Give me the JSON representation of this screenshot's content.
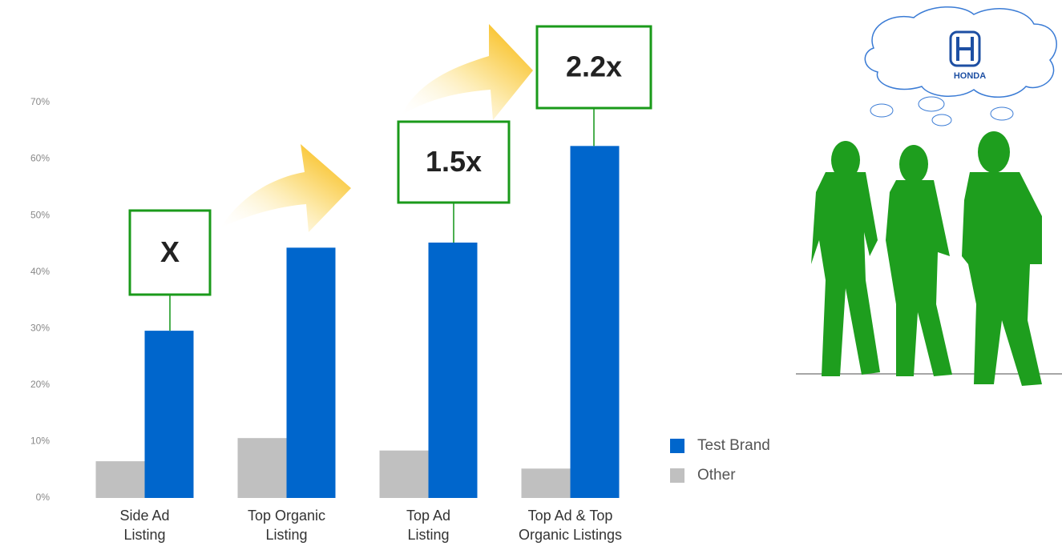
{
  "chart_data": {
    "type": "bar",
    "categories": [
      "Side Ad Listing",
      "Top Organic Listing",
      "Top Ad Listing",
      "Top Ad & Top Organic Listings"
    ],
    "series": [
      {
        "name": "Other",
        "color": "#c0c0c0",
        "values": [
          6.5,
          10.6,
          8.4,
          5.2
        ]
      },
      {
        "name": "Test Brand",
        "color": "#0066cc",
        "values": [
          29.6,
          44.3,
          45.2,
          62.3
        ]
      }
    ],
    "ylim": [
      0,
      70
    ],
    "yticks": [
      {
        "value": 0,
        "label": "0%"
      },
      {
        "value": 10,
        "label": "10%"
      },
      {
        "value": 20,
        "label": "20%"
      },
      {
        "value": 30,
        "label": "30%"
      },
      {
        "value": 40,
        "label": "40%"
      },
      {
        "value": 50,
        "label": "50%"
      },
      {
        "value": 60,
        "label": "60%"
      },
      {
        "value": 70,
        "label": "70%"
      }
    ],
    "grid": false,
    "legend": "right",
    "annotations": [
      "X",
      "1.5x",
      "2.2x"
    ]
  },
  "illustration": {
    "logo_text": "HONDA"
  }
}
